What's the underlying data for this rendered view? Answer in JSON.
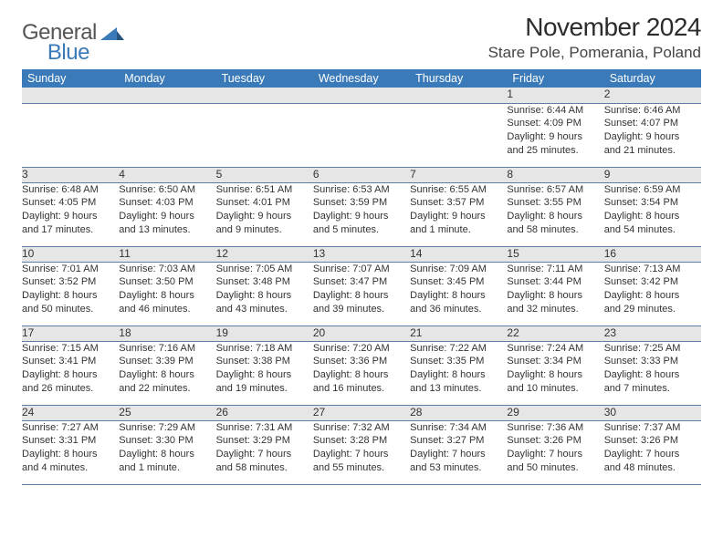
{
  "brand": {
    "general": "General",
    "blue": "Blue"
  },
  "title": "November 2024",
  "location": "Stare Pole, Pomerania, Poland",
  "colors": {
    "header_bg": "#3a7ab8",
    "header_text": "#ffffff",
    "daynum_bg": "#e6e6e6",
    "cell_border": "#5b7fa5",
    "text": "#333333",
    "page_bg": "#ffffff"
  },
  "style": {
    "title_fontsize": 28,
    "location_fontsize": 17,
    "header_fontsize": 12.5,
    "daynum_fontsize": 12,
    "detail_fontsize": 11
  },
  "daysOfWeek": [
    "Sunday",
    "Monday",
    "Tuesday",
    "Wednesday",
    "Thursday",
    "Friday",
    "Saturday"
  ],
  "weeks": [
    {
      "cells": [
        {
          "blank": true
        },
        {
          "blank": true
        },
        {
          "blank": true
        },
        {
          "blank": true
        },
        {
          "blank": true
        },
        {
          "day": "1",
          "sunrise": "Sunrise: 6:44 AM",
          "sunset": "Sunset: 4:09 PM",
          "daylight1": "Daylight: 9 hours",
          "daylight2": "and 25 minutes."
        },
        {
          "day": "2",
          "sunrise": "Sunrise: 6:46 AM",
          "sunset": "Sunset: 4:07 PM",
          "daylight1": "Daylight: 9 hours",
          "daylight2": "and 21 minutes."
        }
      ]
    },
    {
      "cells": [
        {
          "day": "3",
          "sunrise": "Sunrise: 6:48 AM",
          "sunset": "Sunset: 4:05 PM",
          "daylight1": "Daylight: 9 hours",
          "daylight2": "and 17 minutes."
        },
        {
          "day": "4",
          "sunrise": "Sunrise: 6:50 AM",
          "sunset": "Sunset: 4:03 PM",
          "daylight1": "Daylight: 9 hours",
          "daylight2": "and 13 minutes."
        },
        {
          "day": "5",
          "sunrise": "Sunrise: 6:51 AM",
          "sunset": "Sunset: 4:01 PM",
          "daylight1": "Daylight: 9 hours",
          "daylight2": "and 9 minutes."
        },
        {
          "day": "6",
          "sunrise": "Sunrise: 6:53 AM",
          "sunset": "Sunset: 3:59 PM",
          "daylight1": "Daylight: 9 hours",
          "daylight2": "and 5 minutes."
        },
        {
          "day": "7",
          "sunrise": "Sunrise: 6:55 AM",
          "sunset": "Sunset: 3:57 PM",
          "daylight1": "Daylight: 9 hours",
          "daylight2": "and 1 minute."
        },
        {
          "day": "8",
          "sunrise": "Sunrise: 6:57 AM",
          "sunset": "Sunset: 3:55 PM",
          "daylight1": "Daylight: 8 hours",
          "daylight2": "and 58 minutes."
        },
        {
          "day": "9",
          "sunrise": "Sunrise: 6:59 AM",
          "sunset": "Sunset: 3:54 PM",
          "daylight1": "Daylight: 8 hours",
          "daylight2": "and 54 minutes."
        }
      ]
    },
    {
      "cells": [
        {
          "day": "10",
          "sunrise": "Sunrise: 7:01 AM",
          "sunset": "Sunset: 3:52 PM",
          "daylight1": "Daylight: 8 hours",
          "daylight2": "and 50 minutes."
        },
        {
          "day": "11",
          "sunrise": "Sunrise: 7:03 AM",
          "sunset": "Sunset: 3:50 PM",
          "daylight1": "Daylight: 8 hours",
          "daylight2": "and 46 minutes."
        },
        {
          "day": "12",
          "sunrise": "Sunrise: 7:05 AM",
          "sunset": "Sunset: 3:48 PM",
          "daylight1": "Daylight: 8 hours",
          "daylight2": "and 43 minutes."
        },
        {
          "day": "13",
          "sunrise": "Sunrise: 7:07 AM",
          "sunset": "Sunset: 3:47 PM",
          "daylight1": "Daylight: 8 hours",
          "daylight2": "and 39 minutes."
        },
        {
          "day": "14",
          "sunrise": "Sunrise: 7:09 AM",
          "sunset": "Sunset: 3:45 PM",
          "daylight1": "Daylight: 8 hours",
          "daylight2": "and 36 minutes."
        },
        {
          "day": "15",
          "sunrise": "Sunrise: 7:11 AM",
          "sunset": "Sunset: 3:44 PM",
          "daylight1": "Daylight: 8 hours",
          "daylight2": "and 32 minutes."
        },
        {
          "day": "16",
          "sunrise": "Sunrise: 7:13 AM",
          "sunset": "Sunset: 3:42 PM",
          "daylight1": "Daylight: 8 hours",
          "daylight2": "and 29 minutes."
        }
      ]
    },
    {
      "cells": [
        {
          "day": "17",
          "sunrise": "Sunrise: 7:15 AM",
          "sunset": "Sunset: 3:41 PM",
          "daylight1": "Daylight: 8 hours",
          "daylight2": "and 26 minutes."
        },
        {
          "day": "18",
          "sunrise": "Sunrise: 7:16 AM",
          "sunset": "Sunset: 3:39 PM",
          "daylight1": "Daylight: 8 hours",
          "daylight2": "and 22 minutes."
        },
        {
          "day": "19",
          "sunrise": "Sunrise: 7:18 AM",
          "sunset": "Sunset: 3:38 PM",
          "daylight1": "Daylight: 8 hours",
          "daylight2": "and 19 minutes."
        },
        {
          "day": "20",
          "sunrise": "Sunrise: 7:20 AM",
          "sunset": "Sunset: 3:36 PM",
          "daylight1": "Daylight: 8 hours",
          "daylight2": "and 16 minutes."
        },
        {
          "day": "21",
          "sunrise": "Sunrise: 7:22 AM",
          "sunset": "Sunset: 3:35 PM",
          "daylight1": "Daylight: 8 hours",
          "daylight2": "and 13 minutes."
        },
        {
          "day": "22",
          "sunrise": "Sunrise: 7:24 AM",
          "sunset": "Sunset: 3:34 PM",
          "daylight1": "Daylight: 8 hours",
          "daylight2": "and 10 minutes."
        },
        {
          "day": "23",
          "sunrise": "Sunrise: 7:25 AM",
          "sunset": "Sunset: 3:33 PM",
          "daylight1": "Daylight: 8 hours",
          "daylight2": "and 7 minutes."
        }
      ]
    },
    {
      "cells": [
        {
          "day": "24",
          "sunrise": "Sunrise: 7:27 AM",
          "sunset": "Sunset: 3:31 PM",
          "daylight1": "Daylight: 8 hours",
          "daylight2": "and 4 minutes."
        },
        {
          "day": "25",
          "sunrise": "Sunrise: 7:29 AM",
          "sunset": "Sunset: 3:30 PM",
          "daylight1": "Daylight: 8 hours",
          "daylight2": "and 1 minute."
        },
        {
          "day": "26",
          "sunrise": "Sunrise: 7:31 AM",
          "sunset": "Sunset: 3:29 PM",
          "daylight1": "Daylight: 7 hours",
          "daylight2": "and 58 minutes."
        },
        {
          "day": "27",
          "sunrise": "Sunrise: 7:32 AM",
          "sunset": "Sunset: 3:28 PM",
          "daylight1": "Daylight: 7 hours",
          "daylight2": "and 55 minutes."
        },
        {
          "day": "28",
          "sunrise": "Sunrise: 7:34 AM",
          "sunset": "Sunset: 3:27 PM",
          "daylight1": "Daylight: 7 hours",
          "daylight2": "and 53 minutes."
        },
        {
          "day": "29",
          "sunrise": "Sunrise: 7:36 AM",
          "sunset": "Sunset: 3:26 PM",
          "daylight1": "Daylight: 7 hours",
          "daylight2": "and 50 minutes."
        },
        {
          "day": "30",
          "sunrise": "Sunrise: 7:37 AM",
          "sunset": "Sunset: 3:26 PM",
          "daylight1": "Daylight: 7 hours",
          "daylight2": "and 48 minutes."
        }
      ]
    }
  ]
}
